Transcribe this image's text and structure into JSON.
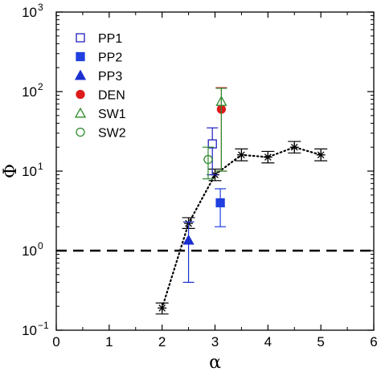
{
  "chart_data": {
    "type": "scatter",
    "xlabel": "α",
    "ylabel": "Φ",
    "xlim": [
      0,
      6
    ],
    "ylim": [
      0.1,
      1000
    ],
    "yscale": "log",
    "x_ticks": [
      "0",
      "1",
      "2",
      "3",
      "4",
      "5",
      "6"
    ],
    "y_ticks": [
      {
        "value": 0.1,
        "base": "10",
        "exp": "−1"
      },
      {
        "value": 1,
        "base": "10",
        "exp": "0"
      },
      {
        "value": 10,
        "base": "10",
        "exp": "1"
      },
      {
        "value": 100,
        "base": "10",
        "exp": "2"
      },
      {
        "value": 1000,
        "base": "10",
        "exp": "3"
      }
    ],
    "reference_line": {
      "y": 1,
      "style": "dashed",
      "color": "#000000"
    },
    "trend": {
      "style": "dotted",
      "marker": "asterisk",
      "color": "#000000",
      "points": [
        {
          "x": 2.0,
          "y": 0.19,
          "ylo": 0.16,
          "yhi": 0.22
        },
        {
          "x": 2.5,
          "y": 2.2,
          "ylo": 1.9,
          "yhi": 2.6
        },
        {
          "x": 3.0,
          "y": 9.0,
          "ylo": 7.6,
          "yhi": 10.6
        },
        {
          "x": 3.5,
          "y": 16,
          "ylo": 13.5,
          "yhi": 19
        },
        {
          "x": 4.0,
          "y": 15,
          "ylo": 12.7,
          "yhi": 17.7
        },
        {
          "x": 4.5,
          "y": 20,
          "ylo": 16.9,
          "yhi": 23.6
        },
        {
          "x": 5.0,
          "y": 16,
          "ylo": 13.5,
          "yhi": 19
        }
      ]
    },
    "series": [
      {
        "name": "PP1",
        "marker": "square-open",
        "color": "#1f1fbf",
        "x": 2.95,
        "y": 22,
        "ylo": 9,
        "yhi": 35
      },
      {
        "name": "PP2",
        "marker": "square-filled",
        "color": "#1f3fdf",
        "x": 3.1,
        "y": 4,
        "ylo": 2,
        "yhi": 6
      },
      {
        "name": "PP3",
        "marker": "triangle-filled",
        "color": "#1a2fd0",
        "x": 2.5,
        "y": 1.35,
        "ylo": 0.4,
        "yhi": 2.3
      },
      {
        "name": "DEN",
        "marker": "circle-filled",
        "color": "#dd1a1a",
        "x": 3.12,
        "y": 60,
        "ylo": 10,
        "yhi": 112
      },
      {
        "name": "SW1",
        "marker": "triangle-open",
        "color": "#2e8b2e",
        "x": 3.12,
        "y": 75,
        "ylo": 10,
        "yhi": 110
      },
      {
        "name": "SW2",
        "marker": "circle-open",
        "color": "#2e8b2e",
        "x": 2.87,
        "y": 14,
        "ylo": 8,
        "yhi": 20
      }
    ],
    "legend": {
      "placement": "top-left"
    }
  }
}
